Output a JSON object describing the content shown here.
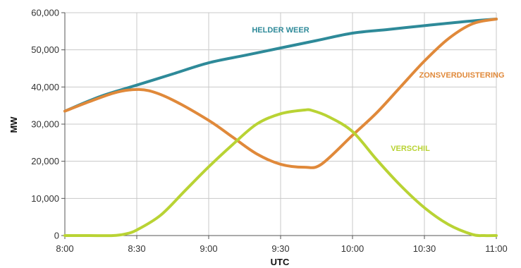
{
  "chart_data": {
    "type": "line",
    "xlabel": "UTC",
    "ylabel": "MW",
    "xlim": [
      0,
      180
    ],
    "ylim": [
      0,
      60000
    ],
    "x_ticks": [
      {
        "v": 0,
        "label": "8:00"
      },
      {
        "v": 30,
        "label": "8:30"
      },
      {
        "v": 60,
        "label": "9:00"
      },
      {
        "v": 90,
        "label": "9:30"
      },
      {
        "v": 120,
        "label": "10:00"
      },
      {
        "v": 150,
        "label": "10:30"
      },
      {
        "v": 180,
        "label": "11:00"
      }
    ],
    "y_ticks": [
      {
        "v": 0,
        "label": "0"
      },
      {
        "v": 10000,
        "label": "10,000"
      },
      {
        "v": 20000,
        "label": "20,000"
      },
      {
        "v": 30000,
        "label": "30,000"
      },
      {
        "v": 40000,
        "label": "40,000"
      },
      {
        "v": 50000,
        "label": "50,000"
      },
      {
        "v": 60000,
        "label": "60,000"
      }
    ],
    "grid": {
      "horizontal": true,
      "vertical": true
    },
    "series": [
      {
        "name": "HELDER WEER",
        "color": "#2e8a99",
        "x": [
          0,
          15,
          30,
          45,
          60,
          75,
          90,
          105,
          120,
          135,
          150,
          165,
          180
        ],
        "y": [
          33500,
          37500,
          40500,
          43500,
          46500,
          48500,
          50500,
          52500,
          54500,
          55500,
          56500,
          57500,
          58300
        ]
      },
      {
        "name": "ZONSVERDUISTERING",
        "color": "#e0893a",
        "x": [
          0,
          10,
          20,
          27,
          35,
          45,
          60,
          70,
          80,
          90,
          100,
          107,
          120,
          130,
          140,
          150,
          160,
          170,
          180
        ],
        "y": [
          33500,
          36000,
          38300,
          39200,
          39000,
          36500,
          31000,
          26500,
          22000,
          19200,
          18400,
          19200,
          27000,
          33000,
          40000,
          47000,
          53000,
          57000,
          58300
        ]
      },
      {
        "name": "VERSCHIL",
        "color": "#b9d334",
        "x": [
          0,
          10,
          20,
          25,
          30,
          40,
          50,
          60,
          70,
          80,
          90,
          100,
          103,
          110,
          120,
          130,
          140,
          150,
          160,
          170,
          175,
          180
        ],
        "y": [
          0,
          0,
          0,
          400,
          1500,
          5500,
          12000,
          18500,
          24500,
          30000,
          32800,
          33800,
          33700,
          32000,
          28000,
          20500,
          13500,
          7500,
          3000,
          300,
          0,
          0
        ]
      }
    ]
  }
}
